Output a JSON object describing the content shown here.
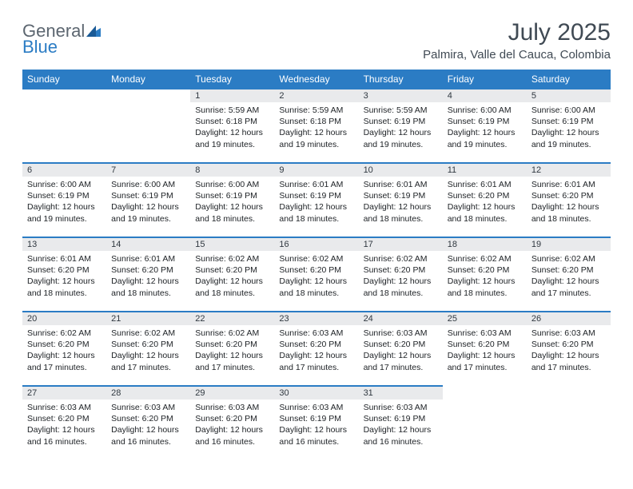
{
  "brand": {
    "line1": "General",
    "line2": "Blue",
    "text_color": "#5c6670",
    "accent_color": "#2b7cc4"
  },
  "title": "July 2025",
  "location": "Palmira, Valle del Cauca, Colombia",
  "weekday_headers": [
    "Sunday",
    "Monday",
    "Tuesday",
    "Wednesday",
    "Thursday",
    "Friday",
    "Saturday"
  ],
  "theme": {
    "header_bg": "#2b7cc4",
    "header_fg": "#ffffff",
    "daynum_bg": "#e9eaec",
    "row_border": "#2b7cc4",
    "text_color": "#202428",
    "title_color": "#404a54"
  },
  "weeks": [
    [
      null,
      null,
      {
        "n": "1",
        "sunrise": "5:59 AM",
        "sunset": "6:18 PM",
        "daylight": "12 hours and 19 minutes."
      },
      {
        "n": "2",
        "sunrise": "5:59 AM",
        "sunset": "6:18 PM",
        "daylight": "12 hours and 19 minutes."
      },
      {
        "n": "3",
        "sunrise": "5:59 AM",
        "sunset": "6:19 PM",
        "daylight": "12 hours and 19 minutes."
      },
      {
        "n": "4",
        "sunrise": "6:00 AM",
        "sunset": "6:19 PM",
        "daylight": "12 hours and 19 minutes."
      },
      {
        "n": "5",
        "sunrise": "6:00 AM",
        "sunset": "6:19 PM",
        "daylight": "12 hours and 19 minutes."
      }
    ],
    [
      {
        "n": "6",
        "sunrise": "6:00 AM",
        "sunset": "6:19 PM",
        "daylight": "12 hours and 19 minutes."
      },
      {
        "n": "7",
        "sunrise": "6:00 AM",
        "sunset": "6:19 PM",
        "daylight": "12 hours and 19 minutes."
      },
      {
        "n": "8",
        "sunrise": "6:00 AM",
        "sunset": "6:19 PM",
        "daylight": "12 hours and 18 minutes."
      },
      {
        "n": "9",
        "sunrise": "6:01 AM",
        "sunset": "6:19 PM",
        "daylight": "12 hours and 18 minutes."
      },
      {
        "n": "10",
        "sunrise": "6:01 AM",
        "sunset": "6:19 PM",
        "daylight": "12 hours and 18 minutes."
      },
      {
        "n": "11",
        "sunrise": "6:01 AM",
        "sunset": "6:20 PM",
        "daylight": "12 hours and 18 minutes."
      },
      {
        "n": "12",
        "sunrise": "6:01 AM",
        "sunset": "6:20 PM",
        "daylight": "12 hours and 18 minutes."
      }
    ],
    [
      {
        "n": "13",
        "sunrise": "6:01 AM",
        "sunset": "6:20 PM",
        "daylight": "12 hours and 18 minutes."
      },
      {
        "n": "14",
        "sunrise": "6:01 AM",
        "sunset": "6:20 PM",
        "daylight": "12 hours and 18 minutes."
      },
      {
        "n": "15",
        "sunrise": "6:02 AM",
        "sunset": "6:20 PM",
        "daylight": "12 hours and 18 minutes."
      },
      {
        "n": "16",
        "sunrise": "6:02 AM",
        "sunset": "6:20 PM",
        "daylight": "12 hours and 18 minutes."
      },
      {
        "n": "17",
        "sunrise": "6:02 AM",
        "sunset": "6:20 PM",
        "daylight": "12 hours and 18 minutes."
      },
      {
        "n": "18",
        "sunrise": "6:02 AM",
        "sunset": "6:20 PM",
        "daylight": "12 hours and 18 minutes."
      },
      {
        "n": "19",
        "sunrise": "6:02 AM",
        "sunset": "6:20 PM",
        "daylight": "12 hours and 17 minutes."
      }
    ],
    [
      {
        "n": "20",
        "sunrise": "6:02 AM",
        "sunset": "6:20 PM",
        "daylight": "12 hours and 17 minutes."
      },
      {
        "n": "21",
        "sunrise": "6:02 AM",
        "sunset": "6:20 PM",
        "daylight": "12 hours and 17 minutes."
      },
      {
        "n": "22",
        "sunrise": "6:02 AM",
        "sunset": "6:20 PM",
        "daylight": "12 hours and 17 minutes."
      },
      {
        "n": "23",
        "sunrise": "6:03 AM",
        "sunset": "6:20 PM",
        "daylight": "12 hours and 17 minutes."
      },
      {
        "n": "24",
        "sunrise": "6:03 AM",
        "sunset": "6:20 PM",
        "daylight": "12 hours and 17 minutes."
      },
      {
        "n": "25",
        "sunrise": "6:03 AM",
        "sunset": "6:20 PM",
        "daylight": "12 hours and 17 minutes."
      },
      {
        "n": "26",
        "sunrise": "6:03 AM",
        "sunset": "6:20 PM",
        "daylight": "12 hours and 17 minutes."
      }
    ],
    [
      {
        "n": "27",
        "sunrise": "6:03 AM",
        "sunset": "6:20 PM",
        "daylight": "12 hours and 16 minutes."
      },
      {
        "n": "28",
        "sunrise": "6:03 AM",
        "sunset": "6:20 PM",
        "daylight": "12 hours and 16 minutes."
      },
      {
        "n": "29",
        "sunrise": "6:03 AM",
        "sunset": "6:20 PM",
        "daylight": "12 hours and 16 minutes."
      },
      {
        "n": "30",
        "sunrise": "6:03 AM",
        "sunset": "6:19 PM",
        "daylight": "12 hours and 16 minutes."
      },
      {
        "n": "31",
        "sunrise": "6:03 AM",
        "sunset": "6:19 PM",
        "daylight": "12 hours and 16 minutes."
      },
      null,
      null
    ]
  ],
  "labels": {
    "sunrise": "Sunrise:",
    "sunset": "Sunset:",
    "daylight": "Daylight:"
  }
}
